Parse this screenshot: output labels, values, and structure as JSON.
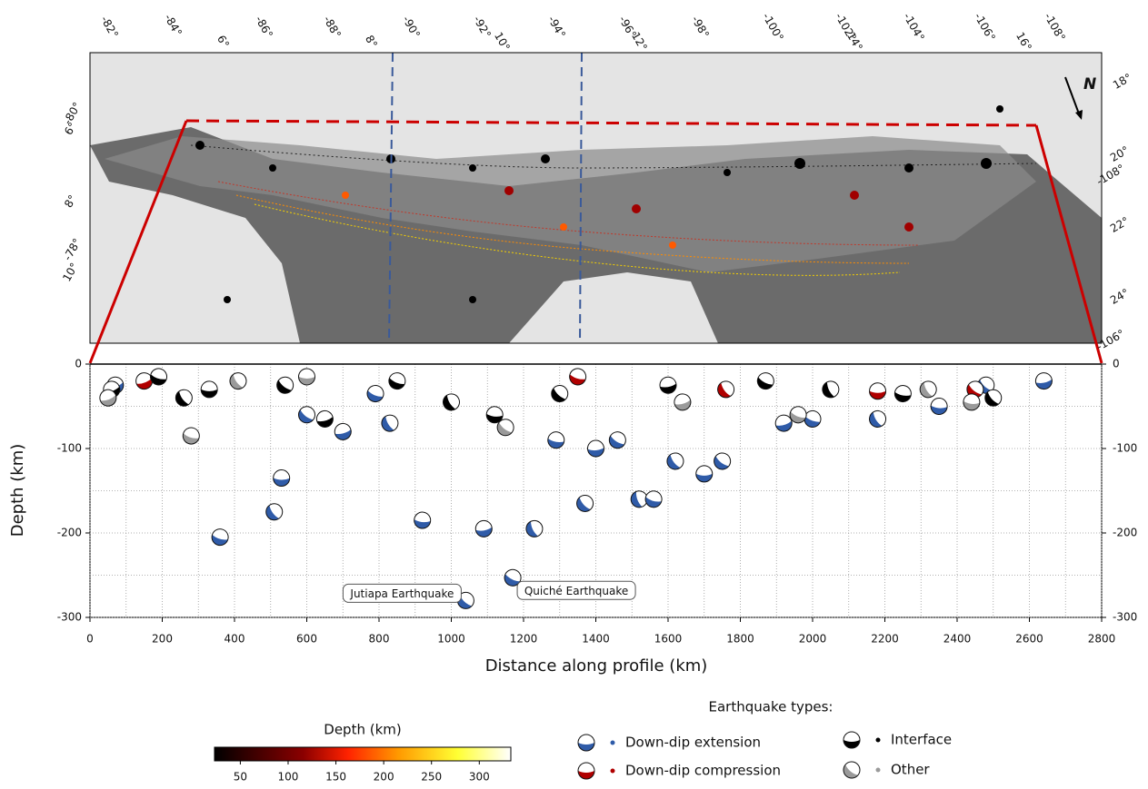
{
  "map": {
    "top_labels": [
      "-82°",
      "-84°",
      "6°",
      "-86°",
      "-88°",
      "8°",
      "-90°",
      "-92°",
      "10°",
      "-94°",
      "-96°",
      "12°",
      "-98°",
      "-100°",
      "-102°",
      "14°",
      "-104°",
      "-106°",
      "16°",
      "-108°"
    ],
    "right_labels": [
      "18°",
      "20°",
      "-108°",
      "22°",
      "24°",
      "-106°"
    ],
    "left_labels": [
      "-80°",
      "6°",
      "8°",
      "-78°",
      "10°"
    ],
    "north": "N"
  },
  "chart_data": {
    "type": "scatter",
    "xlabel": "Distance along profile (km)",
    "ylabel": "Depth (km)",
    "xlim": [
      0,
      2800
    ],
    "ylim": [
      -300,
      0
    ],
    "xticks": [
      0,
      200,
      400,
      600,
      800,
      1000,
      1200,
      1400,
      1600,
      1800,
      2000,
      2200,
      2400,
      2600,
      2800
    ],
    "yticks": [
      -300,
      -200,
      -100,
      0
    ],
    "minor_xticks": [
      100,
      300,
      500,
      700,
      900,
      1100,
      1300,
      1500,
      1700,
      1900,
      2100,
      2300,
      2500,
      2700
    ],
    "minor_yticks": [
      -250,
      -150,
      -50
    ],
    "grid": true,
    "annotations": [
      "Jutiapa Earthquake",
      "Quiché Earthquake"
    ],
    "legend_title": "Earthquake types:",
    "series": [
      {
        "name": "Down-dip extension",
        "color": "#2f5ba8",
        "x": [
          70,
          360,
          510,
          530,
          600,
          700,
          790,
          830,
          920,
          1040,
          1090,
          1170,
          1230,
          1290,
          1370,
          1400,
          1460,
          1520,
          1560,
          1620,
          1700,
          1750,
          1920,
          2000,
          2180,
          2350,
          2480,
          2640
        ],
        "values": [
          -25,
          -205,
          -175,
          -135,
          -60,
          -80,
          -35,
          -70,
          -185,
          -280,
          -195,
          -253,
          -195,
          -90,
          -165,
          -100,
          -90,
          -160,
          -160,
          -115,
          -130,
          -115,
          -70,
          -65,
          -65,
          -50,
          -25,
          -20
        ]
      },
      {
        "name": "Down-dip compression",
        "color": "#b00000",
        "x": [
          150,
          1350,
          1760,
          2180,
          2450
        ],
        "values": [
          -20,
          -15,
          -30,
          -32,
          -30
        ]
      },
      {
        "name": "Interface",
        "color": "#000000",
        "x": [
          60,
          190,
          260,
          330,
          540,
          650,
          850,
          1000,
          1120,
          1300,
          1600,
          1870,
          2050,
          2250,
          2500
        ],
        "values": [
          -30,
          -15,
          -40,
          -30,
          -25,
          -65,
          -20,
          -45,
          -60,
          -35,
          -25,
          -20,
          -30,
          -35,
          -40
        ]
      },
      {
        "name": "Other",
        "color": "#9a9a9a",
        "x": [
          50,
          280,
          410,
          600,
          1150,
          1640,
          1960,
          2320,
          2440
        ],
        "values": [
          -40,
          -85,
          -20,
          -15,
          -75,
          -45,
          -60,
          -30,
          -45
        ]
      }
    ]
  },
  "colorbar": {
    "title": "Depth (km)",
    "lim": [
      23,
      333
    ],
    "ticks": [
      50,
      100,
      150,
      200,
      250,
      300
    ]
  }
}
